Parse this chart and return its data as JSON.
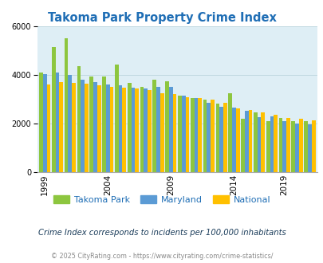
{
  "title": "Takoma Park Property Crime Index",
  "subtitle": "Crime Index corresponds to incidents per 100,000 inhabitants",
  "footer": "© 2025 CityRating.com - https://www.cityrating.com/crime-statistics/",
  "years": [
    1999,
    2000,
    2001,
    2002,
    2003,
    2004,
    2005,
    2006,
    2007,
    2008,
    2009,
    2010,
    2011,
    2012,
    2013,
    2014,
    2016,
    2017,
    2018,
    2019,
    2020,
    2021
  ],
  "takoma_park": [
    4100,
    5150,
    5500,
    4350,
    3950,
    3920,
    4430,
    3680,
    3500,
    3800,
    3750,
    3150,
    3050,
    2980,
    2820,
    3250,
    2200,
    2450,
    2100,
    2230,
    2100,
    2100
  ],
  "maryland": [
    4050,
    4100,
    4000,
    3800,
    3700,
    3620,
    3570,
    3480,
    3430,
    3500,
    3520,
    3150,
    3050,
    2870,
    2680,
    2650,
    2520,
    2280,
    2300,
    2100,
    2000,
    1960
  ],
  "national": [
    3620,
    3700,
    3680,
    3650,
    3570,
    3520,
    3480,
    3430,
    3380,
    3250,
    3200,
    3080,
    3050,
    2980,
    2870,
    2620,
    2570,
    2450,
    2350,
    2230,
    2200,
    2130
  ],
  "bar_colors": {
    "takoma_park": "#8dc63f",
    "maryland": "#5b9bd5",
    "national": "#ffc000"
  },
  "bg_color": "#deeef5",
  "ylim": [
    0,
    6000
  ],
  "yticks": [
    0,
    2000,
    4000,
    6000
  ],
  "title_color": "#1f6eb5",
  "subtitle_color": "#1a3c5a",
  "footer_color": "#888888",
  "legend_labels": [
    "Takoma Park",
    "Maryland",
    "National"
  ],
  "legend_colors": [
    "#8dc63f",
    "#5b9bd5",
    "#ffc000"
  ],
  "tick_years": [
    1999,
    2004,
    2009,
    2014,
    2019
  ]
}
